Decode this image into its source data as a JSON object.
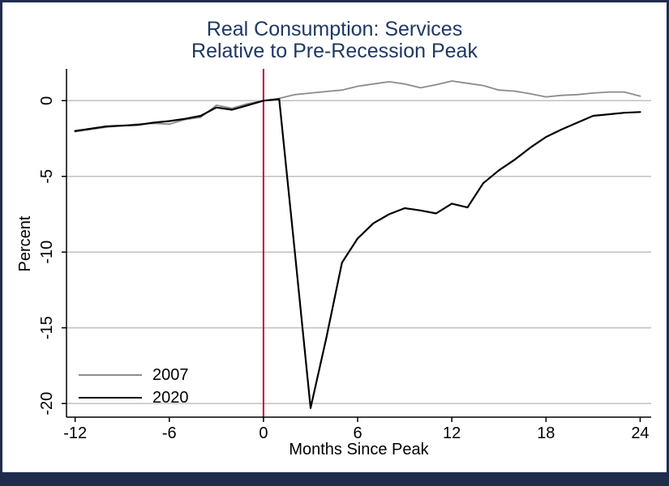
{
  "figure": {
    "border_color": "#1f2d4d",
    "background_color": "#ffffff"
  },
  "title": {
    "line1": "Real Consumption: Services",
    "line2": "Relative to Pre-Recession Peak",
    "color": "#1f3864"
  },
  "chart_data": {
    "type": "line",
    "title": "Real Consumption: Services Relative to Pre-Recession Peak",
    "xlabel": "Months Since Peak",
    "ylabel": "Percent",
    "x": [
      -12,
      -11,
      -10,
      -9,
      -8,
      -7,
      -6,
      -5,
      -4,
      -3,
      -2,
      -1,
      0,
      1,
      2,
      3,
      4,
      5,
      6,
      7,
      8,
      9,
      10,
      11,
      12,
      13,
      14,
      15,
      16,
      17,
      18,
      19,
      20,
      21,
      22,
      23,
      24
    ],
    "series": [
      {
        "name": "2007",
        "color": "#8c8c8c",
        "line_width": 1.8,
        "values": [
          -2.05,
          -1.9,
          -1.75,
          -1.65,
          -1.55,
          -1.5,
          -1.55,
          -1.25,
          -1.1,
          -0.3,
          -0.5,
          -0.2,
          0,
          0.15,
          0.4,
          0.5,
          0.6,
          0.7,
          0.95,
          1.1,
          1.25,
          1.1,
          0.85,
          1.05,
          1.3,
          1.15,
          1.0,
          0.7,
          0.63,
          0.45,
          0.25,
          0.35,
          0.4,
          0.5,
          0.57,
          0.57,
          0.3
        ]
      },
      {
        "name": "2020",
        "color": "#000000",
        "line_width": 2.2,
        "values": [
          -2.0,
          -1.85,
          -1.7,
          -1.65,
          -1.6,
          -1.45,
          -1.35,
          -1.2,
          -1.0,
          -0.45,
          -0.6,
          -0.3,
          0,
          0.1,
          -10.0,
          -20.3,
          -15.7,
          -10.7,
          -9.1,
          -8.1,
          -7.5,
          -7.1,
          -7.25,
          -7.45,
          -6.8,
          -7.05,
          -5.45,
          -4.6,
          -3.9,
          -3.1,
          -2.4,
          -1.9,
          -1.45,
          -1.0,
          -0.9,
          -0.8,
          -0.75
        ]
      }
    ],
    "x_ticks": [
      -12,
      -6,
      0,
      6,
      12,
      18,
      24
    ],
    "y_ticks": [
      0,
      -5,
      -10,
      -15,
      -20
    ],
    "xlim": [
      -12.55,
      24.7
    ],
    "ylim": [
      -20.9,
      2.1
    ],
    "grid": true,
    "gridline_color": "#c0c0c0",
    "axis_color": "#000000",
    "tick_label_color": "#000000",
    "event_line": {
      "x": 0,
      "color": "#c10534"
    },
    "legend_position": "bottom-left"
  }
}
